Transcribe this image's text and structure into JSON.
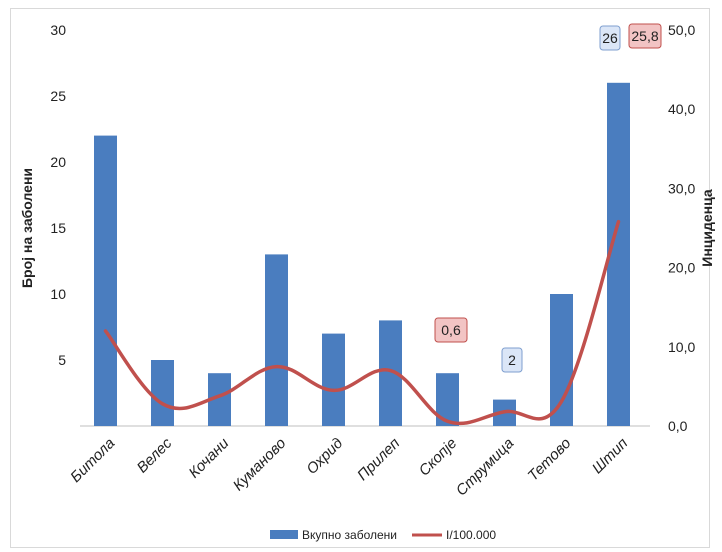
{
  "chart_data": {
    "type": "bar",
    "categories": [
      "Битола",
      "Велес",
      "Кочани",
      "Куманово",
      "Охрид",
      "Прилеп",
      "Скопје",
      "Струмица",
      "Тетово",
      "Штип"
    ],
    "series": [
      {
        "name": "Вкупно заболени",
        "type": "bar",
        "axis": "left",
        "color": "#4a7dbf",
        "values": [
          22,
          5,
          4,
          13,
          7,
          8,
          4,
          2,
          10,
          26
        ]
      },
      {
        "name": "I/100.000",
        "type": "line",
        "axis": "right",
        "color": "#c0504d",
        "values": [
          12.0,
          2.8,
          3.8,
          7.5,
          4.5,
          7.0,
          0.6,
          1.8,
          3.1,
          25.8
        ]
      }
    ],
    "ylabel": "Број на заболени",
    "y2label": "Инциденца",
    "ylim": [
      0,
      30
    ],
    "yticks": [
      "5",
      "10",
      "15",
      "20",
      "25",
      "30"
    ],
    "y2lim": [
      0,
      50
    ],
    "y2ticks": [
      "0,0",
      "10,0",
      "20,0",
      "30,0",
      "40,0",
      "50,0"
    ],
    "legend_position": "bottom",
    "annotations": [
      {
        "text": "26",
        "series": 0,
        "category": 9,
        "style": "blue"
      },
      {
        "text": "25,8",
        "series": 1,
        "category": 9,
        "style": "red"
      },
      {
        "text": "0,6",
        "series": 1,
        "category": 6,
        "style": "red"
      },
      {
        "text": "2",
        "series": 0,
        "category": 7,
        "style": "blue"
      }
    ]
  }
}
